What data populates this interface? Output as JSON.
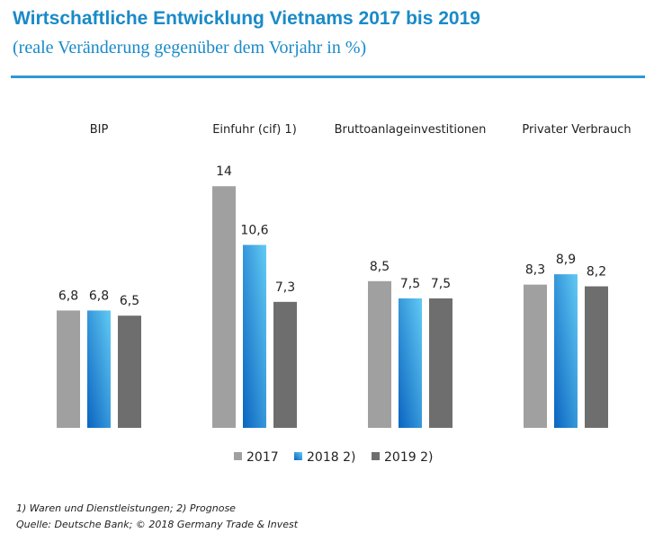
{
  "header": {
    "title": "Wirtschaftliche Entwicklung Vietnams 2017 bis 2019",
    "subtitle": "(reale Veränderung gegenüber dem Vorjahr in %)"
  },
  "footer": {
    "note": "1) Waren und Dienstleistungen; 2) Prognose",
    "source": "Quelle: Deutsche Bank; © 2018  Germany Trade & Invest"
  },
  "colors": {
    "accent": "#1a8ac8",
    "s2017": "#a0a0a0",
    "s2018_light": "#5cc6f2",
    "s2018_dark": "#0a6cc4",
    "s2019": "#6e6e6e"
  },
  "chart_data": {
    "type": "bar",
    "title": "Wirtschaftliche Entwicklung Vietnams 2017 bis 2019",
    "subtitle": "(reale Veränderung gegenüber dem Vorjahr in %)",
    "xlabel": "",
    "ylabel": "",
    "ylim": [
      0,
      14
    ],
    "grid": false,
    "legend_position": "bottom",
    "categories": [
      "BIP",
      "Einfuhr (cif) 1)",
      "Bruttoanlageinvestitionen",
      "Privater Verbrauch"
    ],
    "series": [
      {
        "name": "2017",
        "values": [
          6.8,
          14,
          8.5,
          8.3
        ],
        "labels": [
          "6,8",
          "14",
          "8,5",
          "8,3"
        ]
      },
      {
        "name": "2018 2)",
        "values": [
          6.8,
          10.6,
          7.5,
          8.9
        ],
        "labels": [
          "6,8",
          "10,6",
          "7,5",
          "8,9"
        ]
      },
      {
        "name": "2019 2)",
        "values": [
          6.5,
          7.3,
          7.5,
          8.2
        ],
        "labels": [
          "6,5",
          "7,3",
          "7,5",
          "8,2"
        ]
      }
    ]
  }
}
